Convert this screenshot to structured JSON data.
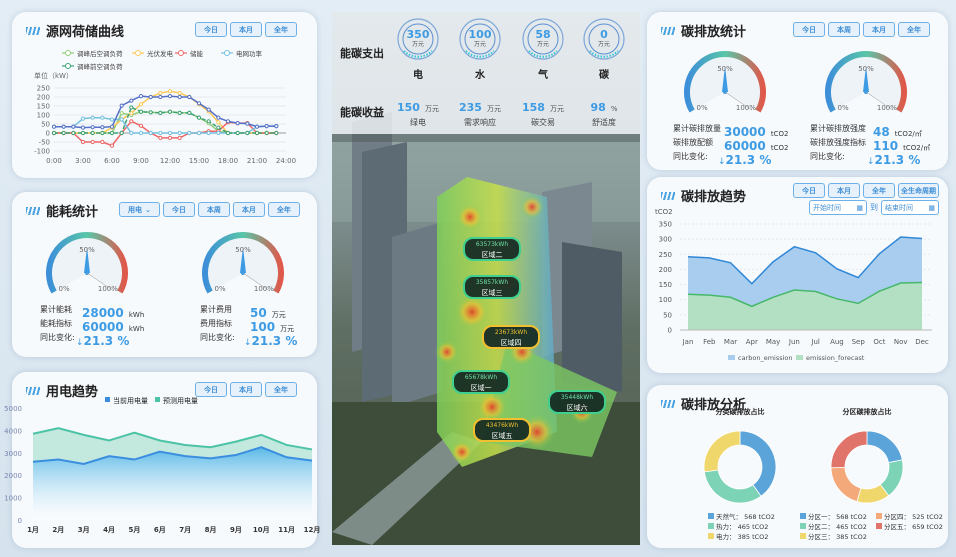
{
  "common": {
    "today": "今日",
    "week": "本周",
    "month": "本月",
    "year": "全年",
    "lifecycle": "全生命周期"
  },
  "colors": {
    "accent": "#3d9be4",
    "panel_bg": "#f7fafd"
  },
  "load_curve": {
    "title": "源网荷储曲线",
    "unit_label": "单位（kW）",
    "chart_data": {
      "type": "line",
      "x": [
        "0:00",
        "1:00",
        "2:00",
        "3:00",
        "4:00",
        "5:00",
        "6:00",
        "7:00",
        "8:00",
        "9:00",
        "10:00",
        "11:00",
        "12:00",
        "13:00",
        "14:00",
        "15:00",
        "16:00",
        "17:00",
        "18:00",
        "19:00",
        "20:00",
        "21:00",
        "22:00",
        "23:00"
      ],
      "xticks": [
        "0:00",
        "3:00",
        "6:00",
        "9:00",
        "12:00",
        "15:00",
        "18:00",
        "21:00",
        "24:00"
      ],
      "yticks": [
        250,
        200,
        150,
        100,
        50,
        0,
        -50,
        -100
      ],
      "ylim": [
        -100,
        250
      ],
      "grid": true,
      "legend": "top",
      "series": [
        {
          "name": "调峰后空调负荷",
          "color": "#91cc75",
          "values": [
            0,
            0,
            0,
            0,
            0,
            0,
            0,
            110,
            100,
            118,
            115,
            112,
            118,
            112,
            112,
            85,
            55,
            10,
            0,
            0,
            0,
            0,
            0,
            0
          ]
        },
        {
          "name": "光伏发电",
          "color": "#fac858",
          "values": [
            0,
            0,
            0,
            0,
            0,
            0,
            30,
            75,
            110,
            160,
            200,
            222,
            232,
            222,
            200,
            160,
            120,
            60,
            0,
            0,
            0,
            0,
            0,
            0
          ]
        },
        {
          "name": "储能",
          "color": "#ee6666",
          "values": [
            0,
            0,
            0,
            -50,
            -50,
            -50,
            -70,
            0,
            65,
            40,
            0,
            -27,
            -27,
            -27,
            0,
            0,
            10,
            10,
            60,
            55,
            55,
            0,
            0,
            0
          ]
        },
        {
          "name": "电网功率",
          "color": "#73c0de",
          "values": [
            35,
            35,
            35,
            80,
            85,
            85,
            75,
            75,
            0,
            0,
            0,
            0,
            0,
            0,
            0,
            0,
            0,
            0,
            0,
            0,
            0,
            35,
            38,
            38
          ]
        },
        {
          "name": "调峰前空调负荷",
          "color": "#3ba272",
          "dashed": true,
          "values": [
            0,
            0,
            0,
            0,
            0,
            0,
            0,
            0,
            142,
            118,
            115,
            112,
            118,
            112,
            112,
            85,
            65,
            30,
            0,
            0,
            0,
            0,
            0,
            0
          ]
        },
        {
          "color": "#5470c6",
          "values": [
            35,
            35,
            35,
            30,
            32,
            32,
            35,
            152,
            180,
            205,
            200,
            200,
            205,
            200,
            200,
            165,
            130,
            85,
            65,
            55,
            52,
            35,
            38,
            38
          ]
        }
      ]
    }
  },
  "energy_stats": {
    "title": "能耗统计",
    "select": "用电",
    "gauges": [
      {
        "value_pct": 50,
        "labels": [
          "0%",
          "50%",
          "100%"
        ],
        "rows": [
          {
            "label": "累计能耗",
            "value": "28000",
            "unit": "kWh"
          },
          {
            "label": "能耗指标",
            "value": "60000",
            "unit": "kWh"
          }
        ],
        "change_label": "同比变化:",
        "change": "21.3 %"
      },
      {
        "value_pct": 50,
        "labels": [
          "0%",
          "50%",
          "100%"
        ],
        "rows": [
          {
            "label": "累计费用",
            "value": "50",
            "unit": "万元"
          },
          {
            "label": "费用指标",
            "value": "100",
            "unit": "万元"
          }
        ],
        "change_label": "同比变化:",
        "change": "21.3 %"
      }
    ]
  },
  "power_trend": {
    "title": "用电趋势",
    "chart_data": {
      "type": "area",
      "categories": [
        "1月",
        "2月",
        "3月",
        "4月",
        "5月",
        "6月",
        "7月",
        "8月",
        "9月",
        "10月",
        "11月",
        "12月"
      ],
      "yticks": [
        5000,
        4000,
        3000,
        2000,
        1000,
        0
      ],
      "ylim": [
        0,
        5000
      ],
      "legend": "top",
      "series": [
        {
          "name": "当前用电量",
          "color": "#3a8ee0",
          "values": [
            2600,
            2700,
            2500,
            2850,
            2700,
            3050,
            2850,
            2750,
            2900,
            3250,
            2800,
            2650
          ]
        },
        {
          "name": "预测用电量",
          "color": "#4cc3a6",
          "values": [
            3850,
            4100,
            3800,
            3550,
            3900,
            3550,
            3350,
            3250,
            3500,
            3800,
            3350,
            3150
          ]
        }
      ]
    }
  },
  "center": {
    "expense_label": "能碳支出",
    "income_label": "能碳收益",
    "expenses": [
      {
        "value": "350",
        "unit": "万元",
        "name": "电"
      },
      {
        "value": "100",
        "unit": "万元",
        "name": "水"
      },
      {
        "value": "58",
        "unit": "万元",
        "name": "气"
      },
      {
        "value": "0",
        "unit": "万元",
        "name": "碳"
      }
    ],
    "incomes": [
      {
        "value": "150",
        "unit": "万元",
        "name": "绿电"
      },
      {
        "value": "235",
        "unit": "万元",
        "name": "需求响应"
      },
      {
        "value": "158",
        "unit": "万元",
        "name": "碳交易"
      },
      {
        "value": "98",
        "unit": "%",
        "name": "舒适度"
      }
    ],
    "zones": [
      {
        "value": "63573kWh",
        "name": "区域二"
      },
      {
        "value": "35857kWh",
        "name": "区域三"
      },
      {
        "value": "23673kWh",
        "name": "区域四"
      },
      {
        "value": "65678kWh",
        "name": "区域一"
      },
      {
        "value": "35448kWh",
        "name": "区域六"
      },
      {
        "value": "43476kWh",
        "name": "区域五"
      }
    ]
  },
  "carbon_stats": {
    "title": "碳排放统计",
    "gauges": [
      {
        "value_pct": 50,
        "labels": [
          "0%",
          "50%",
          "100%"
        ],
        "rows": [
          {
            "label": "累计碳排放量",
            "value": "30000",
            "unit": "tCO2"
          },
          {
            "label": "碳排放配额",
            "value": "60000",
            "unit": "tCO2"
          }
        ],
        "change_label": "同比变化:",
        "change": "21.3 %"
      },
      {
        "value_pct": 50,
        "labels": [
          "0%",
          "50%",
          "100%"
        ],
        "rows": [
          {
            "label": "累计碳排放强度",
            "value": "48",
            "unit": "tCO2/㎡"
          },
          {
            "label": "碳排放强度指标",
            "value": "110",
            "unit": "tCO2/㎡"
          }
        ],
        "change_label": "同比变化:",
        "change": "21.3 %"
      }
    ]
  },
  "carbon_trend": {
    "title": "碳排放趋势",
    "start_placeholder": "开始时间",
    "to": "到",
    "end_placeholder": "结束时间",
    "unit": "tCO2",
    "chart_data": {
      "type": "area",
      "categories": [
        "Jan",
        "Feb",
        "Mar",
        "Apr",
        "May",
        "Jun",
        "Jul",
        "Aug",
        "Sep",
        "Oct",
        "Nov",
        "Dec"
      ],
      "yticks": [
        350,
        300,
        250,
        200,
        150,
        100,
        50,
        0
      ],
      "ylim": [
        0,
        350
      ],
      "grid": true,
      "legend": "bottom",
      "series": [
        {
          "name": "carbon_emission",
          "color": "#2f87d6",
          "fill": "#a9cdef",
          "values": [
            242,
            238,
            222,
            153,
            225,
            275,
            255,
            202,
            173,
            252,
            307,
            302
          ]
        },
        {
          "name": "emission_forecast",
          "color": "#45b86a",
          "fill": "#b3e0c2",
          "values": [
            118,
            115,
            108,
            78,
            108,
            132,
            127,
            103,
            88,
            128,
            155,
            157
          ]
        }
      ]
    }
  },
  "carbon_analysis": {
    "title": "碳排放分析",
    "chart_data": [
      {
        "type": "pie",
        "title": "分类碳排放占比",
        "slices": [
          {
            "name": "天然气",
            "value": 568,
            "unit": "tCO2",
            "color": "#5ba4d9"
          },
          {
            "name": "热力",
            "value": 465,
            "unit": "tCO2",
            "color": "#7dd3b6"
          },
          {
            "name": "电力",
            "value": 385,
            "unit": "tCO2",
            "color": "#f0d76c"
          }
        ]
      },
      {
        "type": "pie",
        "title": "分区碳排放占比",
        "slices": [
          {
            "name": "分区一",
            "value": 568,
            "unit": "tCO2",
            "color": "#5ba4d9"
          },
          {
            "name": "分区二",
            "value": 465,
            "unit": "tCO2",
            "color": "#7dd3b6"
          },
          {
            "name": "分区三",
            "value": 385,
            "unit": "tCO2",
            "color": "#f0d76c"
          },
          {
            "name": "分区四",
            "value": 525,
            "unit": "tCO2",
            "color": "#f4a97b"
          },
          {
            "name": "分区五",
            "value": 659,
            "unit": "tCO2",
            "color": "#e0736a"
          }
        ]
      }
    ]
  }
}
